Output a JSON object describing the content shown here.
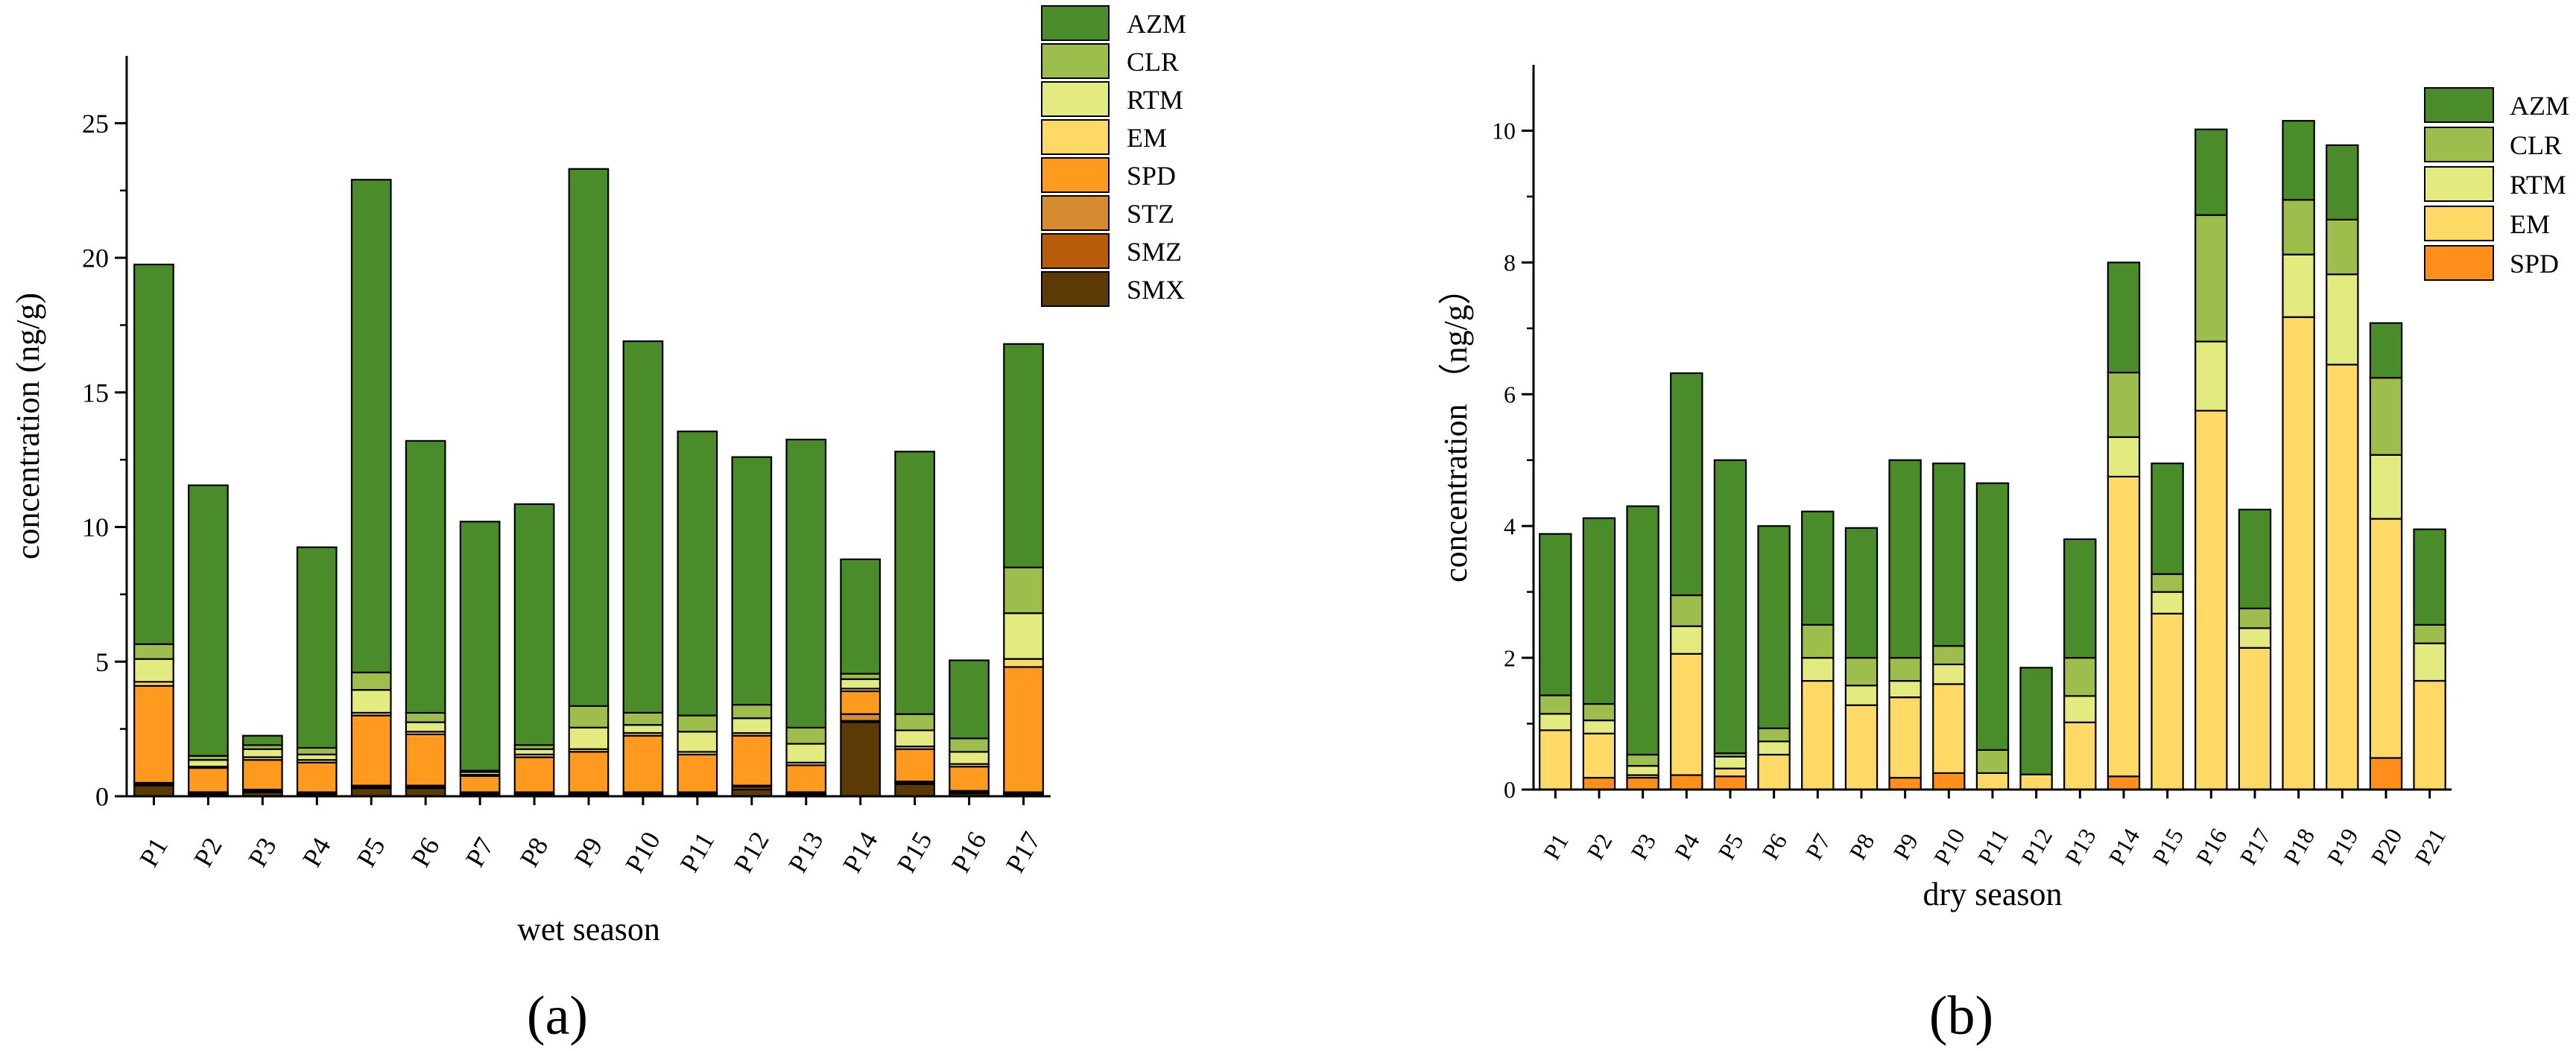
{
  "figure": {
    "panel_a_label": "(a)",
    "panel_b_label": "(b)"
  },
  "chart_data": [
    {
      "id": "wet",
      "type": "bar",
      "stacked": true,
      "xlabel": "wet season",
      "ylabel": "concentration (ng/g)",
      "ylim": [
        0,
        27.5
      ],
      "yticks": [
        0,
        5,
        10,
        15,
        20,
        25
      ],
      "legend_position": "top-right",
      "categories": [
        "P1",
        "P2",
        "P3",
        "P4",
        "P5",
        "P6",
        "P7",
        "P8",
        "P9",
        "P10",
        "P11",
        "P12",
        "P13",
        "P14",
        "P15",
        "P16",
        "P17"
      ],
      "series": [
        {
          "name": "SMX",
          "color": "#5c3a06",
          "values": [
            0.4,
            0.05,
            0.15,
            0.05,
            0.3,
            0.3,
            0.05,
            0.05,
            0.05,
            0.05,
            0.05,
            0.25,
            0.05,
            2.75,
            0.45,
            0.1,
            0.05
          ]
        },
        {
          "name": "SMZ",
          "color": "#b85b0a",
          "values": [
            0.05,
            0.05,
            0.05,
            0.05,
            0.05,
            0.05,
            0.05,
            0.05,
            0.05,
            0.05,
            0.05,
            0.1,
            0.05,
            0.05,
            0.05,
            0.05,
            0.05
          ]
        },
        {
          "name": "STZ",
          "color": "#d58b30",
          "values": [
            0.05,
            0.05,
            0.05,
            0.05,
            0.05,
            0.05,
            0.05,
            0.05,
            0.05,
            0.05,
            0.05,
            0.05,
            0.05,
            0.25,
            0.05,
            0.05,
            0.05
          ]
        },
        {
          "name": "SPD",
          "color": "#ff9a1e",
          "values": [
            3.6,
            0.9,
            1.1,
            1.1,
            2.6,
            1.9,
            0.6,
            1.3,
            1.5,
            2.1,
            1.4,
            1.85,
            1.0,
            0.85,
            1.2,
            0.9,
            4.65
          ]
        },
        {
          "name": "EM",
          "color": "#ffd966",
          "values": [
            0.15,
            0.05,
            0.1,
            0.1,
            0.1,
            0.1,
            0.05,
            0.1,
            0.1,
            0.1,
            0.1,
            0.1,
            0.1,
            0.1,
            0.1,
            0.1,
            0.3
          ]
        },
        {
          "name": "RTM",
          "color": "#e3ea80",
          "values": [
            0.85,
            0.25,
            0.3,
            0.2,
            0.85,
            0.35,
            0.1,
            0.2,
            0.8,
            0.3,
            0.75,
            0.55,
            0.7,
            0.35,
            0.6,
            0.45,
            1.7
          ]
        },
        {
          "name": "CLR",
          "color": "#9dbe4d",
          "values": [
            0.55,
            0.15,
            0.15,
            0.25,
            0.65,
            0.35,
            0.05,
            0.15,
            0.8,
            0.45,
            0.6,
            0.5,
            0.6,
            0.2,
            0.6,
            0.5,
            1.7
          ]
        },
        {
          "name": "AZM",
          "color": "#4a8c29",
          "values": [
            14.1,
            10.05,
            0.35,
            7.45,
            18.3,
            10.1,
            9.25,
            8.95,
            19.95,
            13.8,
            10.55,
            9.2,
            10.7,
            4.25,
            9.75,
            2.9,
            8.3
          ]
        }
      ]
    },
    {
      "id": "dry",
      "type": "bar",
      "stacked": true,
      "xlabel": "dry season",
      "ylabel": "concentration （ng/g）",
      "ylim": [
        0,
        11
      ],
      "yticks": [
        0,
        2,
        4,
        6,
        8,
        10
      ],
      "legend_position": "top-right",
      "categories": [
        "P1",
        "P2",
        "P3",
        "P4",
        "P5",
        "P6",
        "P7",
        "P8",
        "P9",
        "P10",
        "P11",
        "P12",
        "P13",
        "P14",
        "P15",
        "P16",
        "P17",
        "P18",
        "P19",
        "P20",
        "P21"
      ],
      "series": [
        {
          "name": "SPD",
          "color": "#ff8f1a",
          "values": [
            0.0,
            0.18,
            0.18,
            0.22,
            0.2,
            0.0,
            0.0,
            0.0,
            0.18,
            0.25,
            0.0,
            0.0,
            0.0,
            0.2,
            0.0,
            0.0,
            0.0,
            0.0,
            0.0,
            0.48,
            0.0
          ]
        },
        {
          "name": "EM",
          "color": "#ffd966",
          "values": [
            0.9,
            0.67,
            0.04,
            1.84,
            0.12,
            0.53,
            1.65,
            1.28,
            1.22,
            1.35,
            0.25,
            0.23,
            1.02,
            4.55,
            2.67,
            5.75,
            2.15,
            7.17,
            6.45,
            3.63,
            1.65
          ]
        },
        {
          "name": "RTM",
          "color": "#e3ea80",
          "values": [
            0.25,
            0.2,
            0.14,
            0.42,
            0.18,
            0.2,
            0.35,
            0.3,
            0.25,
            0.3,
            0.0,
            0.0,
            0.4,
            0.6,
            0.33,
            1.05,
            0.3,
            0.95,
            1.37,
            0.97,
            0.57
          ]
        },
        {
          "name": "CLR",
          "color": "#9dbe4d",
          "values": [
            0.28,
            0.25,
            0.17,
            0.47,
            0.05,
            0.2,
            0.5,
            0.42,
            0.35,
            0.28,
            0.35,
            0.0,
            0.58,
            0.98,
            0.27,
            1.92,
            0.3,
            0.83,
            0.83,
            1.17,
            0.28
          ]
        },
        {
          "name": "AZM",
          "color": "#4a8c29",
          "values": [
            2.45,
            2.82,
            3.77,
            3.37,
            4.45,
            3.07,
            1.72,
            1.97,
            3.0,
            2.77,
            4.05,
            1.62,
            1.8,
            1.67,
            1.68,
            1.3,
            1.5,
            1.2,
            1.13,
            0.83,
            1.45
          ]
        }
      ]
    }
  ]
}
